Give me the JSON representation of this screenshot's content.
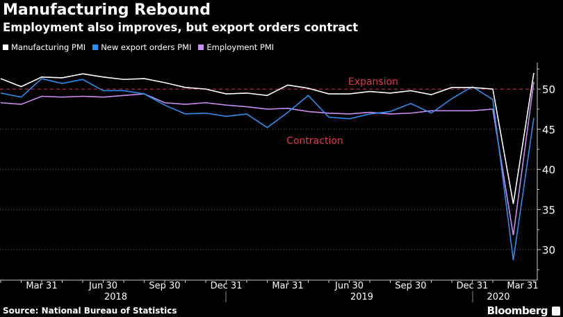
{
  "header": {
    "title": "Manufacturing Rebound",
    "subtitle": "Employment also improves, but export orders contract"
  },
  "footer": {
    "source": "Source: National Bureau of Statistics",
    "brand": "Bloomberg"
  },
  "chart_data": {
    "type": "line",
    "title": "Manufacturing Rebound",
    "subtitle": "Employment also improves, but export orders contract",
    "x": [
      "2018-01",
      "2018-02",
      "2018-03",
      "2018-04",
      "2018-05",
      "2018-06",
      "2018-07",
      "2018-08",
      "2018-09",
      "2018-10",
      "2018-11",
      "2018-12",
      "2019-01",
      "2019-02",
      "2019-03",
      "2019-04",
      "2019-05",
      "2019-06",
      "2019-07",
      "2019-08",
      "2019-09",
      "2019-10",
      "2019-11",
      "2019-12",
      "2020-01",
      "2020-02",
      "2020-03"
    ],
    "series": [
      {
        "name": "Manufacturing PMI",
        "color": "#ffffff",
        "values": [
          51.3,
          50.3,
          51.5,
          51.4,
          51.9,
          51.5,
          51.2,
          51.3,
          50.8,
          50.2,
          50.0,
          49.4,
          49.5,
          49.2,
          50.5,
          50.1,
          49.4,
          49.4,
          49.7,
          49.5,
          49.8,
          49.3,
          50.2,
          50.2,
          50.0,
          35.7,
          52.0
        ]
      },
      {
        "name": "New export orders PMI",
        "color": "#2a8ff0",
        "values": [
          49.5,
          49.0,
          51.3,
          50.7,
          51.2,
          49.8,
          49.8,
          49.4,
          48.0,
          46.9,
          47.0,
          46.6,
          46.9,
          45.2,
          47.1,
          49.2,
          46.5,
          46.3,
          46.9,
          47.2,
          48.2,
          47.0,
          48.8,
          50.3,
          48.7,
          28.7,
          46.4
        ]
      },
      {
        "name": "Employment PMI",
        "color": "#c98ef5",
        "values": [
          48.3,
          48.1,
          49.1,
          49.0,
          49.1,
          49.0,
          49.2,
          49.4,
          48.3,
          48.1,
          48.3,
          48.0,
          47.8,
          47.5,
          47.6,
          47.2,
          47.0,
          46.9,
          47.1,
          46.9,
          47.0,
          47.3,
          47.3,
          47.3,
          47.5,
          31.8,
          50.9
        ]
      }
    ],
    "ylim": [
      26.2,
      53.3
    ],
    "yticks": [
      30,
      35,
      40,
      45,
      50
    ],
    "xticks": [
      {
        "i": 2,
        "label": "Mar 31"
      },
      {
        "i": 5,
        "label": "Jun 30"
      },
      {
        "i": 8,
        "label": "Sep 30"
      },
      {
        "i": 11,
        "label": "Dec 31"
      },
      {
        "i": 14,
        "label": "Mar 31"
      },
      {
        "i": 17,
        "label": "Jun 30"
      },
      {
        "i": 20,
        "label": "Sep 30"
      },
      {
        "i": 23,
        "label": "Dec 31"
      },
      {
        "i": 26,
        "label": "Mar 31"
      }
    ],
    "years": [
      {
        "i": 5,
        "label": "2018"
      },
      {
        "i": 17,
        "label": "2019"
      },
      {
        "i": 25,
        "label": "2020"
      }
    ],
    "reference_line": {
      "value": 50,
      "color": "#e8354d"
    },
    "annotations": [
      {
        "text": "Expansion",
        "color": "#e8354d"
      },
      {
        "text": "Contraction",
        "color": "#e8354d"
      }
    ],
    "grid": true,
    "legend_position": "top-left"
  }
}
